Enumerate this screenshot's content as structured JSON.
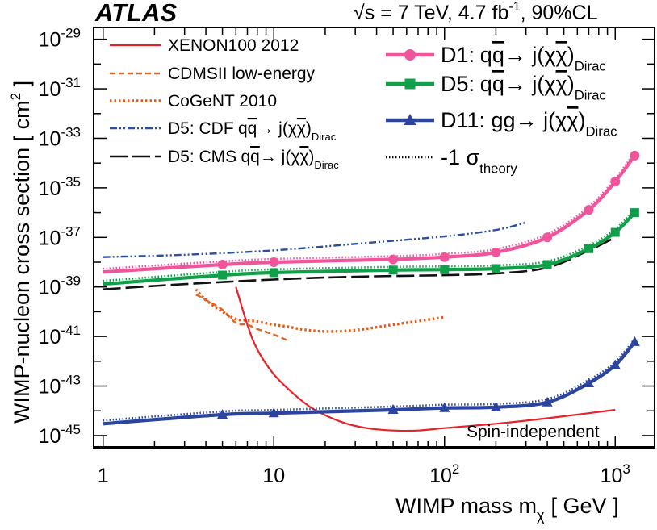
{
  "chart_data": {
    "type": "line",
    "title": "ATLAS",
    "header_sqrt": "√s",
    "header_left": "= 7 TeV, 4.7 fb",
    "header_lumi_sup": "-1",
    "header_right": ", 90%CL",
    "xlabel": "WIMP mass m",
    "xlabel_sub": "χ",
    "xlabel_unit": "[ GeV ]",
    "ylabel": "WIMP-nucleon cross section [ cm",
    "ylabel_sup": "2",
    "ylabel_end": " ]",
    "xscale": "log",
    "yscale": "log",
    "xlim": [
      0.88,
      1700
    ],
    "ylim": [
      3e-46,
      3e-29
    ],
    "x_ticks": [
      {
        "base": "1",
        "exp": ""
      },
      {
        "base": "10",
        "exp": ""
      },
      {
        "base": "10",
        "exp": "2"
      },
      {
        "base": "10",
        "exp": "3"
      }
    ],
    "y_ticks": [
      {
        "base": "10",
        "exp": "-45"
      },
      {
        "base": "10",
        "exp": "-43"
      },
      {
        "base": "10",
        "exp": "-41"
      },
      {
        "base": "10",
        "exp": "-39"
      },
      {
        "base": "10",
        "exp": "-37"
      },
      {
        "base": "10",
        "exp": "-35"
      },
      {
        "base": "10",
        "exp": "-33"
      },
      {
        "base": "10",
        "exp": "-31"
      },
      {
        "base": "10",
        "exp": "-29"
      }
    ],
    "annotation": "Spin-independent",
    "colors": {
      "xenon": "#e8222a",
      "cdms": "#d9662a",
      "cogent": "#e85a14",
      "cdf": "#2b4fa0",
      "cms": "#111111",
      "d1": "#f0559c",
      "d5": "#11a04a",
      "d11": "#2a44a0"
    },
    "series": [
      {
        "name": "XENON100 2012",
        "style": "solid-thin",
        "color_key": "xenon",
        "x": [
          6,
          7,
          8,
          10,
          13,
          17,
          25,
          35,
          50,
          70,
          100,
          200,
          400,
          700,
          1000
        ],
        "y": [
          1e-39,
          3e-41,
          3e-42,
          3e-43,
          5e-44,
          1.2e-44,
          3.5e-45,
          2e-45,
          1.6e-45,
          1.6e-45,
          2e-45,
          3e-45,
          5e-45,
          8e-45,
          1.1e-44
        ]
      },
      {
        "name": "CDMSII low-energy",
        "style": "dash",
        "color_key": "cdms",
        "x": [
          3.5,
          4,
          5,
          6,
          7,
          8,
          10,
          12
        ],
        "y": [
          5e-40,
          3e-40,
          1.2e-40,
          3.5e-41,
          3e-41,
          2e-41,
          1.2e-41,
          7e-42
        ]
      },
      {
        "name": "CoGeNT 2010",
        "style": "dot-thick",
        "color_key": "cogent",
        "x": [
          3.5,
          4,
          5,
          6,
          7,
          8,
          10,
          12,
          15,
          20,
          30,
          50,
          100
        ],
        "y": [
          8e-40,
          3e-40,
          1e-40,
          5e-41,
          4.5e-41,
          4e-41,
          3e-41,
          2.5e-41,
          1.9e-41,
          1.6e-41,
          1.8e-41,
          3e-41,
          6e-41
        ]
      },
      {
        "name": "D5: CDF",
        "label_op": "q",
        "label_opbar": "q",
        "label_mid": "→ j(",
        "label_chi": "χ",
        "label_chibar": "χ",
        "label_end": ")",
        "label_sub": "Dirac",
        "style": "dashdot",
        "color_key": "cdf",
        "x": [
          1,
          3,
          10,
          30,
          100,
          200,
          300
        ],
        "y": [
          1.6e-38,
          2e-38,
          3e-38,
          5.5e-38,
          1.1e-37,
          2e-37,
          4e-37
        ]
      },
      {
        "name": "D5: CMS",
        "label_op": "q",
        "label_opbar": "q",
        "label_mid": "→ j(",
        "label_chi": "χ",
        "label_chibar": "χ",
        "label_end": ")",
        "label_sub": "Dirac",
        "style": "longdash",
        "color_key": "cms",
        "x": [
          1,
          3,
          10,
          30,
          100,
          200,
          400,
          700,
          1000
        ],
        "y": [
          8e-40,
          1.3e-39,
          2e-39,
          2.6e-39,
          3e-39,
          3.5e-39,
          6e-39,
          3e-38,
          1e-37
        ]
      },
      {
        "name": "D1:",
        "label_op": "q",
        "label_opbar": "q",
        "label_mid": "→ j(",
        "label_chi": "χ",
        "label_chibar": "χ",
        "label_end": ")",
        "label_sub": "Dirac",
        "style": "thick-circle",
        "color_key": "d1",
        "x": [
          1,
          5,
          10,
          50,
          100,
          200,
          400,
          700,
          1000,
          1300
        ],
        "y": [
          4e-39,
          8e-39,
          1e-38,
          1.3e-38,
          1.6e-38,
          2.5e-38,
          1e-37,
          1.3e-36,
          1.8e-35,
          2e-34
        ]
      },
      {
        "name": "D5:",
        "label_op": "q",
        "label_opbar": "q",
        "label_mid": "→ j(",
        "label_chi": "χ",
        "label_chibar": "χ",
        "label_end": ")",
        "label_sub": "Dirac",
        "style": "thick-square",
        "color_key": "d5",
        "x": [
          1,
          5,
          10,
          50,
          100,
          200,
          400,
          700,
          1000,
          1300
        ],
        "y": [
          1.3e-39,
          3e-39,
          3.8e-39,
          4.8e-39,
          5e-39,
          5.5e-39,
          8e-39,
          3.5e-38,
          1.6e-37,
          1e-36
        ]
      },
      {
        "name": "D11: gg",
        "label_op": "",
        "label_opbar": "",
        "label_mid": "→ j(",
        "label_chi": "χ",
        "label_chibar": "χ",
        "label_end": ")",
        "label_sub": "Dirac",
        "style": "thick-triangle",
        "color_key": "d11",
        "x": [
          1,
          5,
          10,
          50,
          100,
          200,
          400,
          700,
          1000,
          1300
        ],
        "y": [
          3e-45,
          7e-45,
          8e-45,
          1.1e-44,
          1.3e-44,
          1.4e-44,
          2.2e-44,
          1.3e-43,
          7e-43,
          6e-42
        ]
      },
      {
        "name": "-1 σ",
        "label_sub": "theory",
        "style": "dotted",
        "color_key": "cms"
      }
    ],
    "theory_band_factor": 1.35
  }
}
